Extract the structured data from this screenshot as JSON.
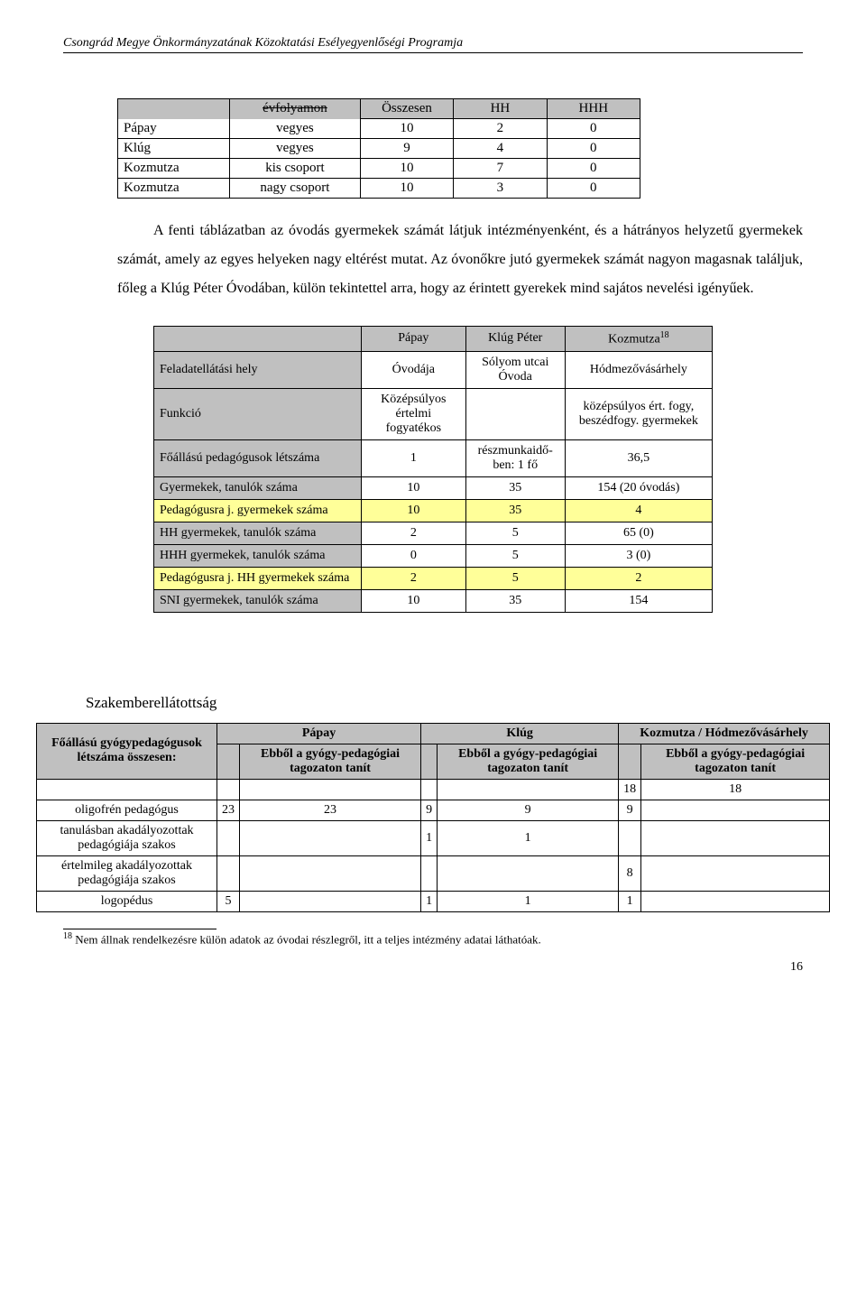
{
  "header": "Csongrád Megye Önkormányzatának Közoktatási Esélyegyenlőségi Programja",
  "table1": {
    "header_strike": "évfolyamon",
    "cols": [
      "Összesen",
      "HH",
      "HHH"
    ],
    "rows": [
      {
        "name": "Pápay",
        "group": "vegyes",
        "v": [
          "10",
          "2",
          "0"
        ]
      },
      {
        "name": "Klúg",
        "group": "vegyes",
        "v": [
          "9",
          "4",
          "0"
        ]
      },
      {
        "name": "Kozmutza",
        "group": "kis csoport",
        "v": [
          "10",
          "7",
          "0"
        ]
      },
      {
        "name": "Kozmutza",
        "group": "nagy csoport",
        "v": [
          "10",
          "3",
          "0"
        ]
      }
    ]
  },
  "para": "A fenti táblázatban az óvodás gyermekek számát látjuk intézményenként, és a hátrányos helyzetű gyermekek számát, amely az egyes helyeken nagy eltérést mutat. Az óvonőkre jutó gyermekek számát nagyon magasnak találjuk, főleg a Klúg Péter Óvodában, külön tekintettel arra, hogy az érintett gyerekek mind sajátos nevelési igényűek.",
  "table2": {
    "cols": [
      "Pápay",
      "Klúg Péter",
      "Kozmutza"
    ],
    "sup": "18",
    "rows": [
      {
        "label": "Feladatellátási hely",
        "v": [
          "Óvodája",
          "Sólyom utcai Óvoda",
          "Hódmezővásárhely"
        ],
        "hl": false
      },
      {
        "label": "Funkció",
        "v": [
          "Középsúlyos értelmi fogyatékos",
          "",
          "középsúlyos ért. fogy, beszédfogy. gyermekek"
        ],
        "hl": false
      },
      {
        "label": "Főállású pedagógusok létszáma",
        "v": [
          "1",
          "részmunkaidő-ben: 1 fő",
          "36,5"
        ],
        "hl": false
      },
      {
        "label": "Gyermekek, tanulók száma",
        "v": [
          "10",
          "35",
          "154 (20 óvodás)"
        ],
        "hl": false
      },
      {
        "label": "Pedagógusra j. gyermekek száma",
        "v": [
          "10",
          "35",
          "4"
        ],
        "hl": true
      },
      {
        "label": "HH gyermekek, tanulók száma",
        "v": [
          "2",
          "5",
          "65 (0)"
        ],
        "hl": false
      },
      {
        "label": "HHH gyermekek, tanulók száma",
        "v": [
          "0",
          "5",
          "3 (0)"
        ],
        "hl": false
      },
      {
        "label": "Pedagógusra j. HH gyermekek száma",
        "v": [
          "2",
          "5",
          "2"
        ],
        "hl": true
      },
      {
        "label": "SNI gyermekek, tanulók száma",
        "v": [
          "10",
          "35",
          "154"
        ],
        "hl": false
      }
    ]
  },
  "section_title": "Szakemberellátottság",
  "table3": {
    "top_cols": [
      "Pápay",
      "Klúg",
      "Kozmutza / Hódmezővásárhely"
    ],
    "sub_label": "Ebből a gyógy-pedagógiai tagozaton tanít",
    "left_header": "Főállású gyógypedagógusok létszáma összesen:",
    "prevals": [
      "18",
      "18"
    ],
    "rows": [
      {
        "label": "oligofrén pedagógus",
        "v": [
          "23",
          "23",
          "9",
          "9",
          "9",
          ""
        ]
      },
      {
        "label": "tanulásban akadályozottak pedagógiája szakos",
        "v": [
          "",
          "",
          "1",
          "1",
          "",
          ""
        ]
      },
      {
        "label": "értelmileg akadályozottak pedagógiája szakos",
        "v": [
          "",
          "",
          "",
          "",
          "8",
          ""
        ]
      },
      {
        "label": "logopédus",
        "v": [
          "5",
          "",
          "1",
          "1",
          "1",
          ""
        ]
      }
    ]
  },
  "footnote": {
    "num": "18",
    "text": " Nem állnak rendelkezésre külön adatok az óvodai részlegről, itt a teljes intézmény adatai láthatóak."
  },
  "page_num": "16"
}
